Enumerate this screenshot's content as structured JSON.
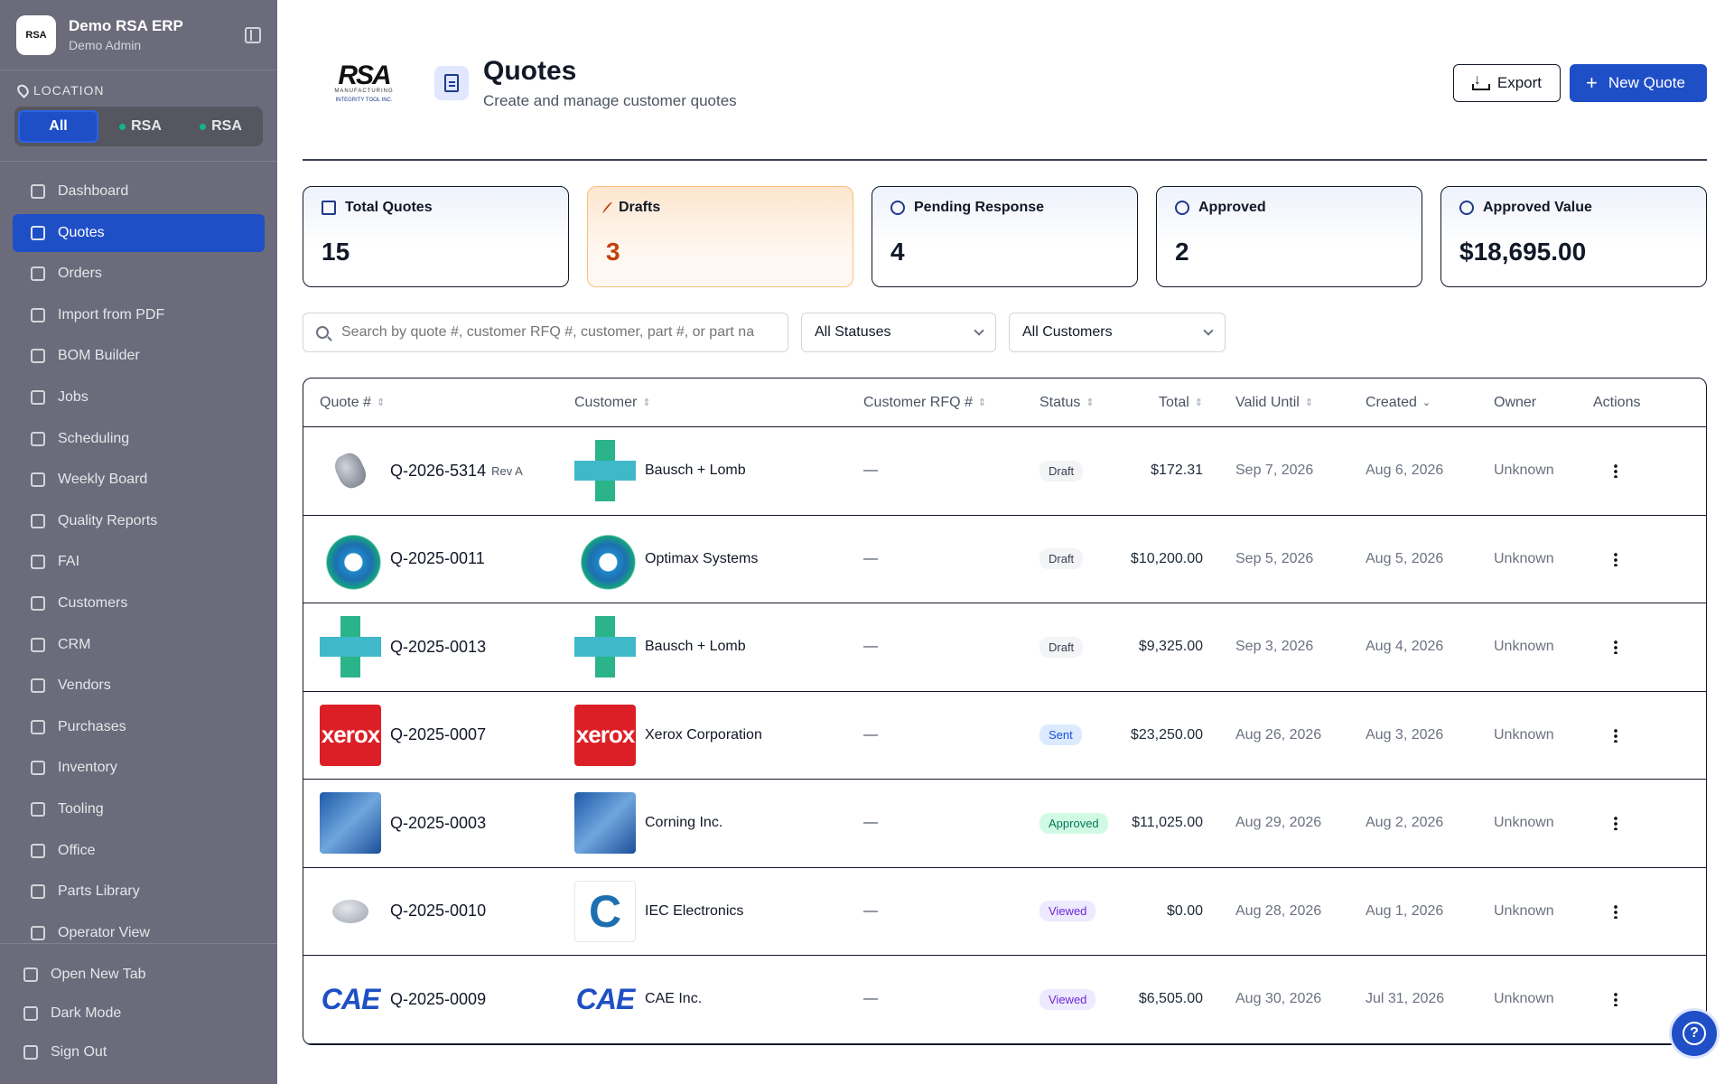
{
  "app": {
    "name": "Demo RSA ERP",
    "user": "Demo Admin",
    "logo_text": "RSA"
  },
  "location": {
    "label": "LOCATION",
    "options": [
      "All",
      "RSA",
      "RSA"
    ],
    "selected": "All"
  },
  "nav": [
    {
      "label": "Dashboard",
      "icon": "grid-icon"
    },
    {
      "label": "Quotes",
      "icon": "document-icon",
      "active": true
    },
    {
      "label": "Orders",
      "icon": "cart-icon"
    },
    {
      "label": "Import from PDF",
      "icon": "file-import-icon"
    },
    {
      "label": "BOM Builder",
      "icon": "layers-icon"
    },
    {
      "label": "Jobs",
      "icon": "wrench-icon"
    },
    {
      "label": "Scheduling",
      "icon": "calendar-icon"
    },
    {
      "label": "Weekly Board",
      "icon": "clipboard-icon"
    },
    {
      "label": "Quality Reports",
      "icon": "clipboard-check-icon"
    },
    {
      "label": "FAI",
      "icon": "clipboard-list-icon"
    },
    {
      "label": "Customers",
      "icon": "users-icon"
    },
    {
      "label": "CRM",
      "icon": "user-check-icon"
    },
    {
      "label": "Vendors",
      "icon": "building-icon"
    },
    {
      "label": "Purchases",
      "icon": "package-icon"
    },
    {
      "label": "Inventory",
      "icon": "boxes-icon"
    },
    {
      "label": "Tooling",
      "icon": "hammer-icon"
    },
    {
      "label": "Office",
      "icon": "receipt-icon"
    },
    {
      "label": "Parts Library",
      "icon": "library-icon"
    },
    {
      "label": "Operator View",
      "icon": "hard-hat-icon"
    }
  ],
  "footer": [
    {
      "label": "Open New Tab",
      "icon": "external-link-icon"
    },
    {
      "label": "Dark Mode",
      "icon": "moon-icon"
    },
    {
      "label": "Sign Out",
      "icon": "log-out-icon"
    }
  ],
  "header": {
    "brand_text": "RSA",
    "brand_sub": "MANUFACTURING",
    "brand_sub2": "INTEGRITY TOOL INC.",
    "title": "Quotes",
    "subtitle": "Create and manage customer quotes",
    "export_label": "Export",
    "new_label": "New Quote"
  },
  "stats": [
    {
      "label": "Total Quotes",
      "value": "15",
      "icon": "document-icon"
    },
    {
      "label": "Drafts",
      "value": "3",
      "icon": "pencil-icon"
    },
    {
      "label": "Pending Response",
      "value": "4",
      "icon": "clock-icon"
    },
    {
      "label": "Approved",
      "value": "2",
      "icon": "check-circle-icon"
    },
    {
      "label": "Approved Value",
      "value": "$18,695.00",
      "icon": "dollar-icon"
    }
  ],
  "filters": {
    "search_placeholder": "Search by quote #, customer RFQ #, customer, part #, or part na",
    "status": "All Statuses",
    "customer": "All Customers"
  },
  "table": {
    "columns": [
      "Quote #",
      "Customer",
      "Customer RFQ #",
      "Status",
      "Total",
      "Valid Until",
      "Created",
      "Owner",
      "Actions"
    ],
    "rows": [
      {
        "quote": "Q-2026-5314",
        "rev": "Rev A",
        "part_img": "knob",
        "customer": "Bausch + Lomb",
        "cust_img": "cross",
        "rfq": "—",
        "status": "Draft",
        "total": "$172.31",
        "valid": "Sep 7, 2026",
        "created": "Aug 6, 2026",
        "owner": "Unknown"
      },
      {
        "quote": "Q-2025-0011",
        "rev": "",
        "part_img": "swirl",
        "customer": "Optimax Systems",
        "cust_img": "swirl",
        "rfq": "—",
        "status": "Draft",
        "total": "$10,200.00",
        "valid": "Sep 5, 2026",
        "created": "Aug 5, 2026",
        "owner": "Unknown"
      },
      {
        "quote": "Q-2025-0013",
        "rev": "",
        "part_img": "cross",
        "customer": "Bausch + Lomb",
        "cust_img": "cross",
        "rfq": "—",
        "status": "Draft",
        "total": "$9,325.00",
        "valid": "Sep 3, 2026",
        "created": "Aug 4, 2026",
        "owner": "Unknown"
      },
      {
        "quote": "Q-2025-0007",
        "rev": "",
        "part_img": "xerox",
        "customer": "Xerox Corporation",
        "cust_img": "xerox",
        "rfq": "—",
        "status": "Sent",
        "total": "$23,250.00",
        "valid": "Aug 26, 2026",
        "created": "Aug 3, 2026",
        "owner": "Unknown"
      },
      {
        "quote": "Q-2025-0003",
        "rev": "",
        "part_img": "corning",
        "customer": "Corning Inc.",
        "cust_img": "corning",
        "rfq": "—",
        "status": "Approved",
        "total": "$11,025.00",
        "valid": "Aug 29, 2026",
        "created": "Aug 2, 2026",
        "owner": "Unknown"
      },
      {
        "quote": "Q-2025-0010",
        "rev": "",
        "part_img": "part",
        "customer": "IEC Electronics",
        "cust_img": "c",
        "rfq": "—",
        "status": "Viewed",
        "total": "$0.00",
        "valid": "Aug 28, 2026",
        "created": "Aug 1, 2026",
        "owner": "Unknown"
      },
      {
        "quote": "Q-2025-0009",
        "rev": "",
        "part_img": "cae",
        "customer": "CAE Inc.",
        "cust_img": "cae",
        "rfq": "—",
        "status": "Viewed",
        "total": "$6,505.00",
        "valid": "Aug 30, 2026",
        "created": "Jul 31, 2026",
        "owner": "Unknown"
      }
    ]
  },
  "logo_text": {
    "xerox": "xerox",
    "cae": "CAE",
    "c": "C"
  }
}
